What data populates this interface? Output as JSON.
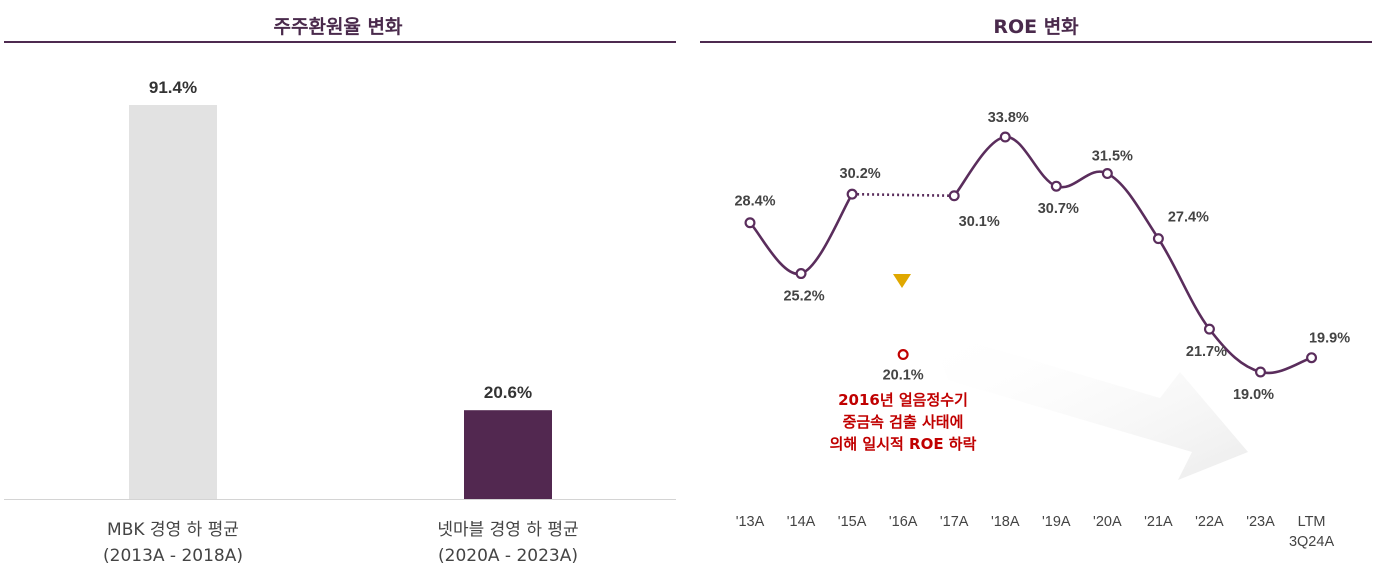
{
  "chart_data": [
    {
      "type": "bar",
      "title": "주주환원율 변화",
      "categories": [
        [
          "MBK 경영 하 평균",
          "(2013A - 2018A)"
        ],
        [
          "넷마블 경영 하 평균",
          "(2020A - 2023A)"
        ]
      ],
      "values": [
        91.4,
        20.6
      ],
      "value_labels": [
        "91.4%",
        "20.6%"
      ],
      "bar_colors": [
        "#e2e2e2",
        "#522850"
      ],
      "ylim": [
        0,
        100
      ],
      "grid": false,
      "legend": "none"
    },
    {
      "type": "line",
      "title": "ROE 변화",
      "categories": [
        "'13A",
        "'14A",
        "'15A",
        "'16A",
        "'17A",
        "'18A",
        "'19A",
        "'20A",
        "'21A",
        "'22A",
        "'23A",
        [
          "LTM",
          "3Q24A"
        ]
      ],
      "series": [
        {
          "values": [
            28.4,
            25.2,
            30.2,
            20.1,
            30.1,
            33.8,
            30.7,
            31.5,
            27.4,
            21.7,
            19.0,
            19.9
          ],
          "labels": [
            "28.4%",
            "25.2%",
            "30.2%",
            "20.1%",
            "30.1%",
            "33.8%",
            "30.7%",
            "31.5%",
            "27.4%",
            "21.7%",
            "19.0%",
            "19.9%"
          ],
          "color": "#5a2d5c",
          "highlight_index": 3,
          "highlight_color": "#c00000",
          "dotted_between": [
            2,
            4
          ]
        }
      ],
      "annotation": {
        "lines": [
          "2016년 얼음정수기",
          "중금속 검출 사태에",
          "의해 일시적 ROE 하락"
        ],
        "color": "#c00000",
        "marker_color": "#e0a800"
      },
      "ylim": [
        17,
        36
      ],
      "grid": false,
      "legend": "none"
    }
  ]
}
